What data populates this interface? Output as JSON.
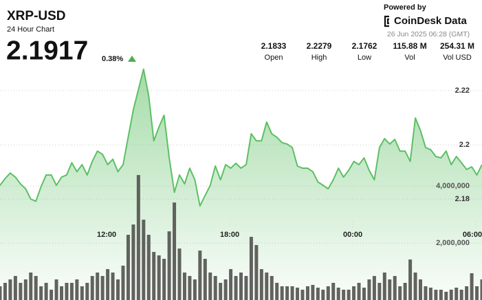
{
  "header": {
    "powered_by": "Powered by",
    "brand": "CoinDesk Data",
    "timestamp": "26 Jun 2025 06:28 (GMT)",
    "price": "2.1917",
    "change": "0.38%",
    "stats": [
      {
        "value": "2.1833",
        "label": "Open"
      },
      {
        "value": "2.2279",
        "label": "High"
      },
      {
        "value": "2.1762",
        "label": "Low"
      },
      {
        "value": "115.88 M",
        "label": "Vol"
      },
      {
        "value": "254.31 M",
        "label": "Vol USD"
      }
    ]
  },
  "chart_data": {
    "type": "line",
    "title": "XRP-USD",
    "subtitle": "24 Hour Chart",
    "x": [
      6.8,
      7.05,
      7.3,
      7.55,
      7.8,
      8.05,
      8.3,
      8.55,
      8.8,
      9.05,
      9.3,
      9.55,
      9.8,
      10.05,
      10.3,
      10.55,
      10.8,
      11.05,
      11.3,
      11.55,
      11.8,
      12.05,
      12.3,
      12.55,
      12.8,
      13.05,
      13.3,
      13.55,
      13.8,
      14.05,
      14.3,
      14.55,
      14.8,
      15.05,
      15.3,
      15.55,
      15.8,
      16.05,
      16.3,
      16.55,
      16.8,
      17.05,
      17.3,
      17.55,
      17.8,
      18.05,
      18.3,
      18.55,
      18.8,
      19.05,
      19.3,
      19.55,
      19.8,
      20.05,
      20.3,
      20.55,
      20.8,
      21.05,
      21.3,
      21.55,
      21.8,
      22.05,
      22.3,
      22.55,
      22.8,
      23.05,
      23.3,
      23.55,
      23.8,
      24.05,
      24.3,
      24.55,
      24.8,
      25.05,
      25.3,
      25.55,
      25.8,
      26.05,
      26.3,
      26.55,
      26.8,
      27.05,
      27.3,
      27.55,
      27.8,
      28.05,
      28.3,
      28.55,
      28.8,
      29.05,
      29.3,
      29.55,
      29.8,
      30.05,
      30.3
    ],
    "xlim": [
      6.8,
      30.3
    ],
    "xticks": [
      {
        "value": 12,
        "label": "12:00"
      },
      {
        "value": 18,
        "label": "18:00"
      },
      {
        "value": 24,
        "label": "00:00"
      },
      {
        "value": 30,
        "label": "06:00"
      }
    ],
    "ylim": [
      2.1428,
      2.2534
    ],
    "yticks": [
      2.18,
      2.2,
      2.22
    ],
    "y2lim": [
      0,
      10530000
    ],
    "y2ticks": [
      {
        "value": 2000000,
        "label": "2,000,000"
      },
      {
        "value": 4000000,
        "label": "4,000,000"
      }
    ],
    "grid": true,
    "series": [
      {
        "name": "Price",
        "color": "#5cbf63",
        "values": [
          2.1851,
          2.1876,
          2.1896,
          2.1881,
          2.1856,
          2.1838,
          2.18,
          2.1792,
          2.1846,
          2.1889,
          2.1889,
          2.1851,
          2.1881,
          2.1889,
          2.1934,
          2.1901,
          2.1927,
          2.1889,
          2.1939,
          2.1977,
          2.1965,
          2.1927,
          2.1947,
          2.1901,
          2.1927,
          2.2028,
          2.2129,
          2.2205,
          2.2279,
          2.218,
          2.2015,
          2.2066,
          2.2109,
          2.1952,
          2.1825,
          2.1889,
          2.1856,
          2.1914,
          2.1871,
          2.1775,
          2.1813,
          2.1851,
          2.1922,
          2.1871,
          2.1927,
          2.1914,
          2.1932,
          2.1914,
          2.1927,
          2.2041,
          2.2015,
          2.2015,
          2.2084,
          2.2041,
          2.2028,
          2.2008,
          2.2003,
          2.199,
          2.1922,
          2.1914,
          2.1914,
          2.1901,
          2.1863,
          2.1851,
          2.1838,
          2.1871,
          2.1914,
          2.1881,
          2.1906,
          2.1939,
          2.1927,
          2.1952,
          2.1906,
          2.1871,
          2.199,
          2.2023,
          2.2003,
          2.202,
          2.1977,
          2.1977,
          2.1939,
          2.2099,
          2.2053,
          2.199,
          2.1982,
          2.1957,
          2.1952,
          2.1977,
          2.1927,
          2.1957,
          2.1934,
          2.1909,
          2.1919,
          2.1889,
          2.1927
        ]
      },
      {
        "name": "Volume",
        "color": "#5a5a56",
        "axis": "y2",
        "values": [
          482000,
          602500,
          723000,
          843500,
          602500,
          723000,
          964000,
          843500,
          482000,
          602500,
          361500,
          723000,
          482000,
          602500,
          602500,
          723000,
          482000,
          602500,
          843500,
          964000,
          843500,
          1084500,
          964000,
          723000,
          1205000,
          2289500,
          2651000,
          4386200,
          2819700,
          2289500,
          1687000,
          1566500,
          1446000,
          2410000,
          3422200,
          1807500,
          964000,
          843500,
          723000,
          1735200,
          1446000,
          964000,
          843500,
          602500,
          723000,
          1084500,
          843500,
          964000,
          843500,
          2217200,
          1928000,
          1084500,
          964000,
          843500,
          602500,
          482000,
          482000,
          482000,
          433800,
          361500,
          482000,
          530200,
          433800,
          361500,
          482000,
          602500,
          433800,
          361500,
          361500,
          482000,
          602500,
          433800,
          723000,
          843500,
          602500,
          964000,
          723000,
          843500,
          482000,
          602500,
          1421900,
          964000,
          723000,
          482000,
          433800,
          361500,
          361500,
          289200,
          361500,
          433800,
          361500,
          482000,
          939900,
          482000,
          723000
        ]
      }
    ]
  }
}
